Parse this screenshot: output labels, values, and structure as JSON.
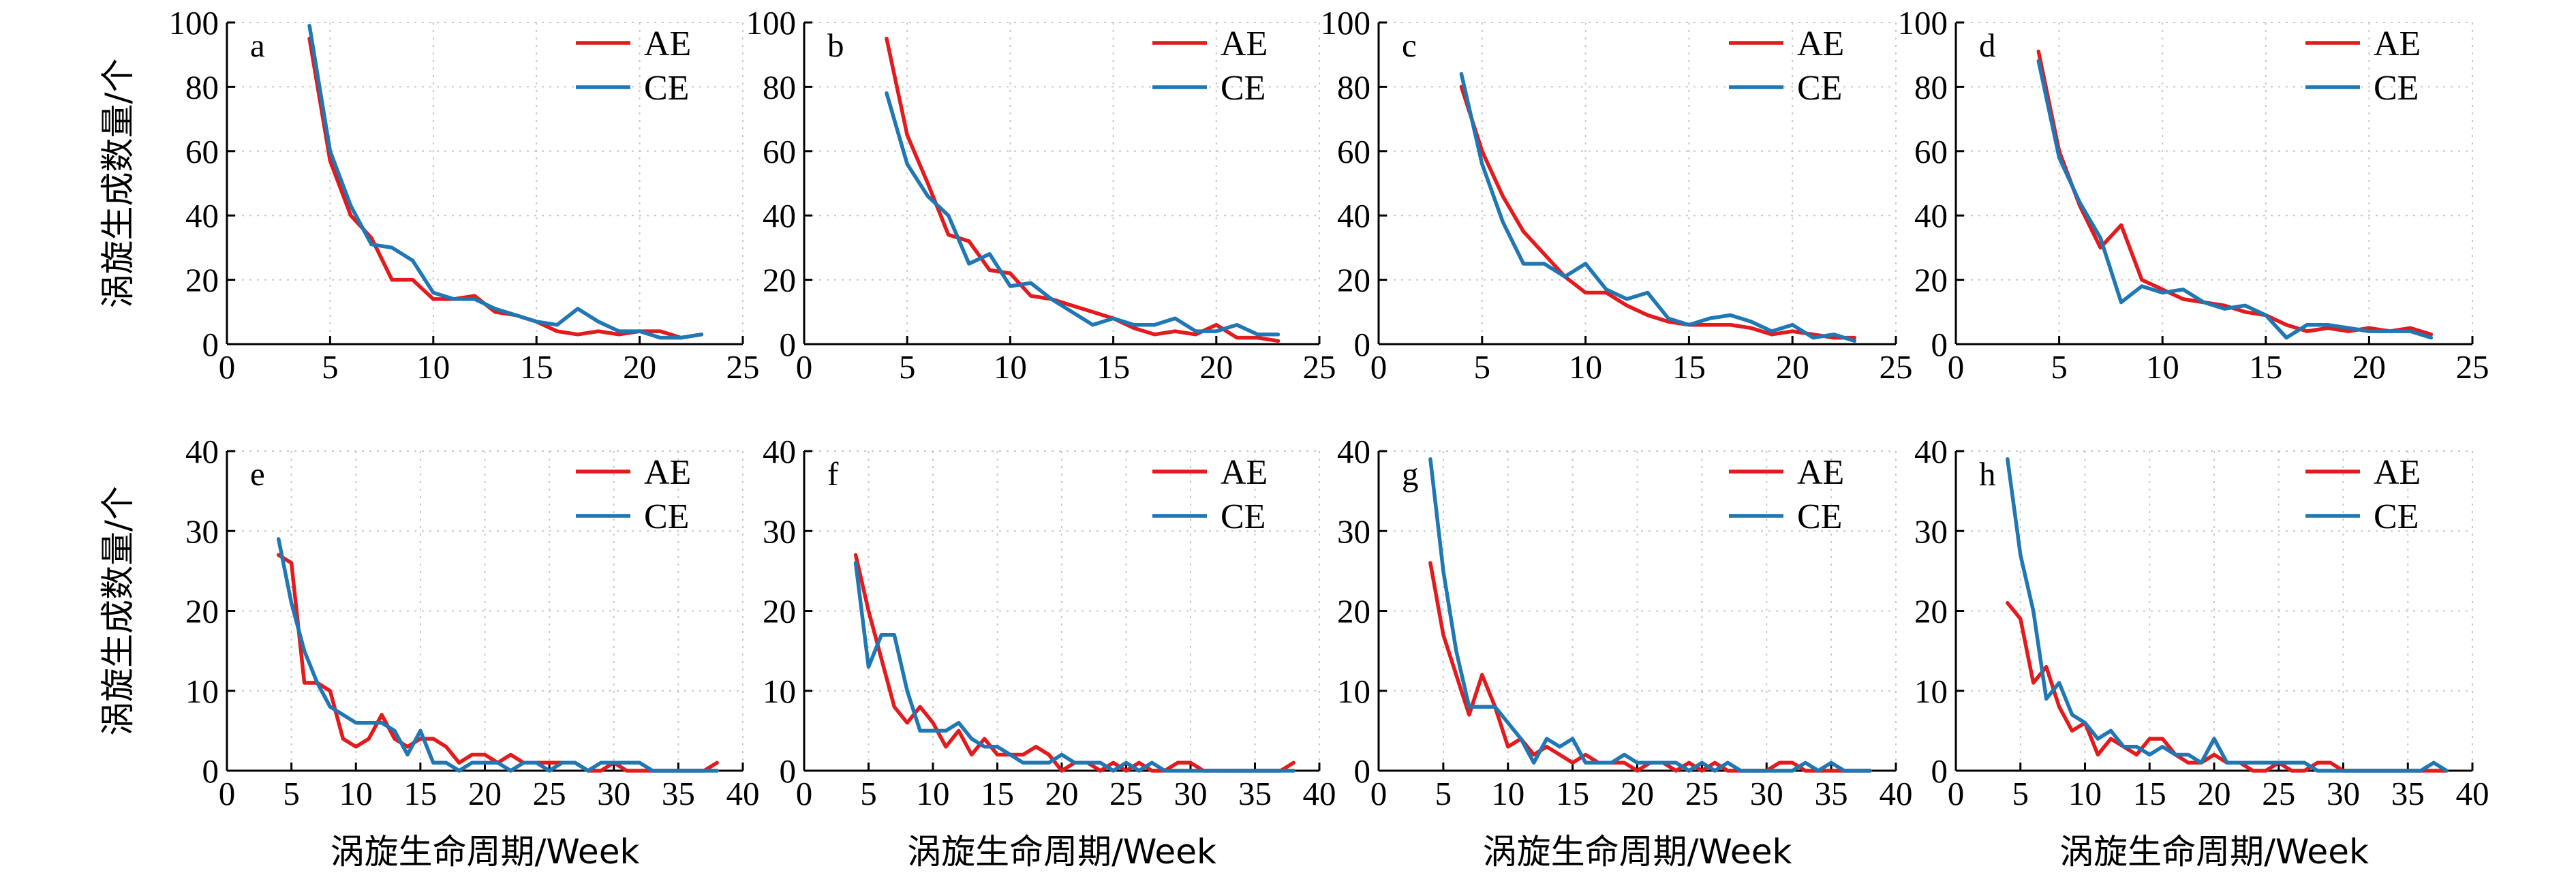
{
  "colors": {
    "AE": "#e41a1c",
    "CE": "#1f77b4",
    "grid": "#c8c8c8"
  },
  "chart_data": [
    {
      "type": "line",
      "label": "a",
      "xlim": [
        0,
        25
      ],
      "ylim": [
        0,
        100
      ],
      "xticks": [
        0,
        5,
        10,
        15,
        20,
        25
      ],
      "yticks": [
        0,
        20,
        40,
        60,
        80,
        100
      ],
      "ylabel": "涡旋生成数量/个",
      "xlabel": "",
      "legend": "top-right",
      "grid": true,
      "series": [
        {
          "name": "AE",
          "x": [
            4,
            5,
            6,
            7,
            8,
            9,
            10,
            11,
            12,
            13,
            14,
            15,
            16,
            17,
            18,
            19,
            20,
            21,
            22,
            23
          ],
          "y": [
            95,
            57,
            40,
            33,
            20,
            20,
            14,
            14,
            15,
            10,
            9,
            7,
            4,
            3,
            4,
            3,
            4,
            4,
            2,
            3
          ]
        },
        {
          "name": "CE",
          "x": [
            4,
            5,
            6,
            7,
            8,
            9,
            10,
            11,
            12,
            13,
            14,
            15,
            16,
            17,
            18,
            19,
            20,
            21,
            22,
            23
          ],
          "y": [
            99,
            60,
            43,
            31,
            30,
            26,
            16,
            14,
            14,
            11,
            9,
            7,
            6,
            11,
            7,
            4,
            4,
            2,
            2,
            3
          ]
        }
      ]
    },
    {
      "type": "line",
      "label": "b",
      "xlim": [
        0,
        25
      ],
      "ylim": [
        0,
        100
      ],
      "xticks": [
        0,
        5,
        10,
        15,
        20,
        25
      ],
      "yticks": [
        0,
        20,
        40,
        60,
        80,
        100
      ],
      "ylabel": "",
      "xlabel": "",
      "legend": "top-right",
      "grid": true,
      "series": [
        {
          "name": "AE",
          "x": [
            4,
            5,
            6,
            7,
            8,
            9,
            10,
            11,
            12,
            13,
            14,
            15,
            16,
            17,
            18,
            19,
            20,
            21,
            22,
            23
          ],
          "y": [
            95,
            65,
            50,
            34,
            32,
            23,
            22,
            15,
            14,
            12,
            10,
            8,
            5,
            3,
            4,
            3,
            6,
            2,
            2,
            1
          ]
        },
        {
          "name": "CE",
          "x": [
            4,
            5,
            6,
            7,
            8,
            9,
            10,
            11,
            12,
            13,
            14,
            15,
            16,
            17,
            18,
            19,
            20,
            21,
            22,
            23
          ],
          "y": [
            78,
            56,
            46,
            40,
            25,
            28,
            18,
            19,
            14,
            10,
            6,
            8,
            6,
            6,
            8,
            4,
            4,
            6,
            3,
            3
          ]
        }
      ]
    },
    {
      "type": "line",
      "label": "c",
      "xlim": [
        0,
        25
      ],
      "ylim": [
        0,
        100
      ],
      "xticks": [
        0,
        5,
        10,
        15,
        20,
        25
      ],
      "yticks": [
        0,
        20,
        40,
        60,
        80,
        100
      ],
      "ylabel": "",
      "xlabel": "",
      "legend": "top-right",
      "grid": true,
      "series": [
        {
          "name": "AE",
          "x": [
            4,
            5,
            6,
            7,
            8,
            9,
            10,
            11,
            12,
            13,
            14,
            15,
            16,
            17,
            18,
            19,
            20,
            21,
            22,
            23
          ],
          "y": [
            80,
            60,
            46,
            35,
            28,
            21,
            16,
            16,
            12,
            9,
            7,
            6,
            6,
            6,
            5,
            3,
            4,
            3,
            2,
            2
          ]
        },
        {
          "name": "CE",
          "x": [
            4,
            5,
            6,
            7,
            8,
            9,
            10,
            11,
            12,
            13,
            14,
            15,
            16,
            17,
            18,
            19,
            20,
            21,
            22,
            23
          ],
          "y": [
            84,
            56,
            38,
            25,
            25,
            21,
            25,
            17,
            14,
            16,
            8,
            6,
            8,
            9,
            7,
            4,
            6,
            2,
            3,
            1
          ]
        }
      ]
    },
    {
      "type": "line",
      "label": "d",
      "xlim": [
        0,
        25
      ],
      "ylim": [
        0,
        100
      ],
      "xticks": [
        0,
        5,
        10,
        15,
        20,
        25
      ],
      "yticks": [
        0,
        20,
        40,
        60,
        80,
        100
      ],
      "ylabel": "",
      "xlabel": "",
      "legend": "top-right",
      "grid": true,
      "series": [
        {
          "name": "AE",
          "x": [
            4,
            5,
            6,
            7,
            8,
            9,
            10,
            11,
            12,
            13,
            14,
            15,
            16,
            17,
            18,
            19,
            20,
            21,
            22,
            23
          ],
          "y": [
            91,
            60,
            43,
            30,
            37,
            20,
            17,
            14,
            13,
            12,
            10,
            9,
            6,
            4,
            5,
            4,
            5,
            4,
            5,
            3
          ]
        },
        {
          "name": "CE",
          "x": [
            4,
            5,
            6,
            7,
            8,
            9,
            10,
            11,
            12,
            13,
            14,
            15,
            16,
            17,
            18,
            19,
            20,
            21,
            22,
            23
          ],
          "y": [
            88,
            58,
            44,
            33,
            13,
            18,
            16,
            17,
            13,
            11,
            12,
            9,
            2,
            6,
            6,
            5,
            4,
            4,
            4,
            2
          ]
        }
      ]
    },
    {
      "type": "line",
      "label": "e",
      "xlim": [
        0,
        40
      ],
      "ylim": [
        0,
        40
      ],
      "xticks": [
        0,
        5,
        10,
        15,
        20,
        25,
        30,
        35,
        40
      ],
      "yticks": [
        0,
        10,
        20,
        30,
        40
      ],
      "ylabel": "涡旋生成数量/个",
      "xlabel": "涡旋生命周期/Week",
      "legend": "top-right",
      "grid": true,
      "series": [
        {
          "name": "AE",
          "x": [
            4,
            5,
            6,
            7,
            8,
            9,
            10,
            11,
            12,
            13,
            14,
            15,
            16,
            17,
            18,
            19,
            20,
            21,
            22,
            23,
            24,
            25,
            26,
            27,
            28,
            29,
            30,
            31,
            32,
            33,
            34,
            35,
            36,
            37,
            38
          ],
          "y": [
            27,
            26,
            11,
            11,
            10,
            4,
            3,
            4,
            7,
            4,
            3,
            4,
            4,
            3,
            1,
            2,
            2,
            1,
            2,
            1,
            1,
            1,
            1,
            1,
            0,
            0,
            1,
            0,
            0,
            0,
            0,
            0,
            0,
            0,
            1
          ]
        },
        {
          "name": "CE",
          "x": [
            4,
            5,
            6,
            7,
            8,
            9,
            10,
            11,
            12,
            13,
            14,
            15,
            16,
            17,
            18,
            19,
            20,
            21,
            22,
            23,
            24,
            25,
            26,
            27,
            28,
            29,
            30,
            31,
            32,
            33,
            34,
            35,
            36,
            37,
            38
          ],
          "y": [
            29,
            21,
            15,
            11,
            8,
            7,
            6,
            6,
            6,
            5,
            2,
            5,
            1,
            1,
            0,
            1,
            1,
            1,
            0,
            1,
            1,
            0,
            1,
            1,
            0,
            1,
            1,
            1,
            1,
            0,
            0,
            0,
            0,
            0,
            0
          ]
        }
      ]
    },
    {
      "type": "line",
      "label": "f",
      "xlim": [
        0,
        40
      ],
      "ylim": [
        0,
        40
      ],
      "xticks": [
        0,
        5,
        10,
        15,
        20,
        25,
        30,
        35,
        40
      ],
      "yticks": [
        0,
        10,
        20,
        30,
        40
      ],
      "ylabel": "",
      "xlabel": "涡旋生命周期/Week",
      "legend": "top-right",
      "grid": true,
      "series": [
        {
          "name": "AE",
          "x": [
            4,
            5,
            6,
            7,
            8,
            9,
            10,
            11,
            12,
            13,
            14,
            15,
            16,
            17,
            18,
            19,
            20,
            21,
            22,
            23,
            24,
            25,
            26,
            27,
            28,
            29,
            30,
            31,
            32,
            33,
            34,
            35,
            36,
            37,
            38
          ],
          "y": [
            27,
            20,
            14,
            8,
            6,
            8,
            6,
            3,
            5,
            2,
            4,
            2,
            2,
            2,
            3,
            2,
            0,
            1,
            1,
            0,
            1,
            0,
            1,
            0,
            0,
            1,
            1,
            0,
            0,
            0,
            0,
            0,
            0,
            0,
            1
          ]
        },
        {
          "name": "CE",
          "x": [
            4,
            5,
            6,
            7,
            8,
            9,
            10,
            11,
            12,
            13,
            14,
            15,
            16,
            17,
            18,
            19,
            20,
            21,
            22,
            23,
            24,
            25,
            26,
            27,
            28,
            29,
            30,
            31,
            32,
            33,
            34,
            35,
            36,
            37,
            38
          ],
          "y": [
            26,
            13,
            17,
            17,
            10,
            5,
            5,
            5,
            6,
            4,
            3,
            3,
            2,
            1,
            1,
            1,
            2,
            1,
            1,
            1,
            0,
            1,
            0,
            1,
            0,
            0,
            0,
            0,
            0,
            0,
            0,
            0,
            0,
            0,
            0
          ]
        }
      ]
    },
    {
      "type": "line",
      "label": "g",
      "xlim": [
        0,
        40
      ],
      "ylim": [
        0,
        40
      ],
      "xticks": [
        0,
        5,
        10,
        15,
        20,
        25,
        30,
        35,
        40
      ],
      "yticks": [
        0,
        10,
        20,
        30,
        40
      ],
      "ylabel": "",
      "xlabel": "涡旋生命周期/Week",
      "legend": "top-right",
      "grid": true,
      "series": [
        {
          "name": "AE",
          "x": [
            4,
            5,
            6,
            7,
            8,
            9,
            10,
            11,
            12,
            13,
            14,
            15,
            16,
            17,
            18,
            19,
            20,
            21,
            22,
            23,
            24,
            25,
            26,
            27,
            28,
            29,
            30,
            31,
            32,
            33,
            34,
            35,
            36,
            37,
            38
          ],
          "y": [
            26,
            17,
            12,
            7,
            12,
            8,
            3,
            4,
            2,
            3,
            2,
            1,
            2,
            1,
            1,
            1,
            0,
            1,
            1,
            0,
            1,
            0,
            1,
            0,
            0,
            0,
            0,
            1,
            1,
            0,
            0,
            0,
            0,
            0,
            0
          ]
        },
        {
          "name": "CE",
          "x": [
            4,
            5,
            6,
            7,
            8,
            9,
            10,
            11,
            12,
            13,
            14,
            15,
            16,
            17,
            18,
            19,
            20,
            21,
            22,
            23,
            24,
            25,
            26,
            27,
            28,
            29,
            30,
            31,
            32,
            33,
            34,
            35,
            36,
            37,
            38
          ],
          "y": [
            39,
            25,
            15,
            8,
            8,
            8,
            6,
            4,
            1,
            4,
            3,
            4,
            1,
            1,
            1,
            2,
            1,
            1,
            1,
            1,
            0,
            1,
            0,
            1,
            0,
            0,
            0,
            0,
            0,
            1,
            0,
            1,
            0,
            0,
            0
          ]
        }
      ]
    },
    {
      "type": "line",
      "label": "h",
      "xlim": [
        0,
        40
      ],
      "ylim": [
        0,
        40
      ],
      "xticks": [
        0,
        5,
        10,
        15,
        20,
        25,
        30,
        35,
        40
      ],
      "yticks": [
        0,
        10,
        20,
        30,
        40
      ],
      "ylabel": "",
      "xlabel": "涡旋生命周期/Week",
      "legend": "top-right",
      "grid": true,
      "series": [
        {
          "name": "AE",
          "x": [
            4,
            5,
            6,
            7,
            8,
            9,
            10,
            11,
            12,
            13,
            14,
            15,
            16,
            17,
            18,
            19,
            20,
            21,
            22,
            23,
            24,
            25,
            26,
            27,
            28,
            29,
            30,
            31,
            32,
            33,
            34,
            35,
            36,
            37,
            38
          ],
          "y": [
            21,
            19,
            11,
            13,
            8,
            5,
            6,
            2,
            4,
            3,
            2,
            4,
            4,
            2,
            1,
            1,
            2,
            1,
            1,
            0,
            0,
            1,
            0,
            0,
            1,
            1,
            0,
            0,
            0,
            0,
            0,
            0,
            0,
            0,
            0
          ]
        },
        {
          "name": "CE",
          "x": [
            4,
            5,
            6,
            7,
            8,
            9,
            10,
            11,
            12,
            13,
            14,
            15,
            16,
            17,
            18,
            19,
            20,
            21,
            22,
            23,
            24,
            25,
            26,
            27,
            28,
            29,
            30,
            31,
            32,
            33,
            34,
            35,
            36,
            37,
            38
          ],
          "y": [
            39,
            27,
            20,
            9,
            11,
            7,
            6,
            4,
            5,
            3,
            3,
            2,
            3,
            2,
            2,
            1,
            4,
            1,
            1,
            1,
            1,
            1,
            1,
            1,
            0,
            0,
            0,
            0,
            0,
            0,
            0,
            0,
            0,
            1,
            0
          ]
        }
      ]
    }
  ]
}
